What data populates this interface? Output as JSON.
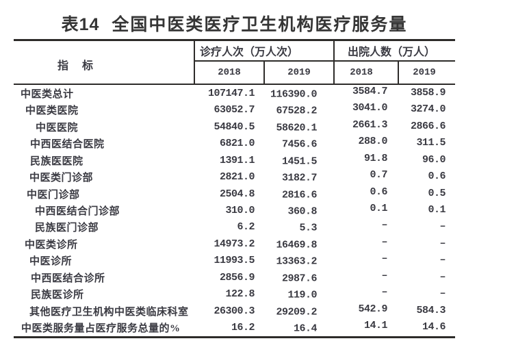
{
  "colors": {
    "text": "#3a3a42",
    "line": "#2d2b29",
    "background": "#ffffff"
  },
  "title": {
    "no": "表14",
    "text": "全国中医类医疗卫生机构医疗服务量"
  },
  "table": {
    "indicator_header": "指　标",
    "col_groups": [
      {
        "label": "诊疗人次（万人次）",
        "years": [
          "2018",
          "2019"
        ]
      },
      {
        "label": "出院人数（万人）",
        "years": [
          "2018",
          "2019"
        ]
      }
    ],
    "rows": [
      {
        "label": "中医类总计",
        "indent": 10,
        "values": [
          "107147.1",
          "116390.0",
          "3584.7",
          "3858.9"
        ]
      },
      {
        "label": "中医类医院",
        "indent": 17,
        "values": [
          "63052.7",
          "67528.2",
          "3041.0",
          "3274.0"
        ]
      },
      {
        "label": "中医医院",
        "indent": 32,
        "values": [
          "54840.5",
          "58620.1",
          "2661.3",
          "2866.6"
        ]
      },
      {
        "label": "中西医结合医院",
        "indent": 24,
        "values": [
          "6821.0",
          "7456.6",
          "288.0",
          "311.5"
        ]
      },
      {
        "label": "民族医医院",
        "indent": 24,
        "values": [
          "1391.1",
          "1451.5",
          "91.8",
          "96.0"
        ]
      },
      {
        "label": "中医类门诊部",
        "indent": 23,
        "values": [
          "2821.0",
          "3182.7",
          "0.7",
          "0.6"
        ]
      },
      {
        "label": "中医门诊部",
        "indent": 19,
        "values": [
          "2504.8",
          "2816.6",
          "0.6",
          "0.5"
        ]
      },
      {
        "label": "中西医结合门诊部",
        "indent": 31,
        "values": [
          "310.0",
          "360.8",
          "0.1",
          "0.1"
        ]
      },
      {
        "label": "民族医门诊部",
        "indent": 31,
        "values": [
          "6.2",
          "5.3",
          "–",
          "–"
        ]
      },
      {
        "label": "中医类诊所",
        "indent": 16,
        "values": [
          "14973.2",
          "16469.8",
          "–",
          "–"
        ]
      },
      {
        "label": "中医诊所",
        "indent": 23,
        "values": [
          "11993.5",
          "13363.2",
          "–",
          "–"
        ]
      },
      {
        "label": "中西医结合诊所",
        "indent": 25,
        "values": [
          "2856.9",
          "2987.6",
          "–",
          "–"
        ]
      },
      {
        "label": "民族医诊所",
        "indent": 25,
        "values": [
          "122.8",
          "119.0",
          "–",
          "–"
        ]
      },
      {
        "label": "其他医疗卫生机构中医类临床科室",
        "indent": 23,
        "values": [
          "26300.3",
          "29209.2",
          "542.9",
          "584.3"
        ]
      },
      {
        "label": "中医类服务量占医疗服务总量的%",
        "indent": 11,
        "values": [
          "16.2",
          "16.4",
          "14.1",
          "14.6"
        ]
      }
    ]
  }
}
